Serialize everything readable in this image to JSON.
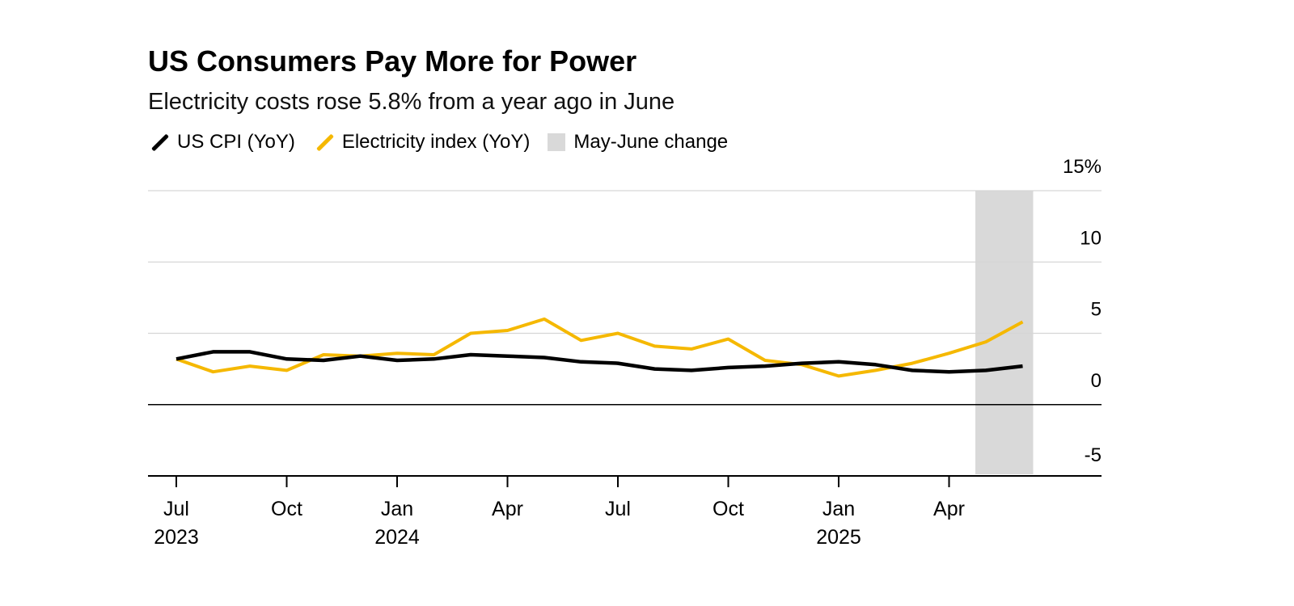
{
  "chart_data": {
    "type": "line",
    "title": "US Consumers Pay More for Power",
    "subtitle": "Electricity costs rose 5.8% from a year ago in June",
    "y_unit_label": "15%",
    "ylim": [
      -5,
      15
    ],
    "y_ticks": [
      15,
      10,
      5,
      0,
      -5
    ],
    "y_tick_labels": [
      "15%",
      "10",
      "5",
      "0",
      "-5"
    ],
    "x_ticks": [
      {
        "month": 0,
        "label": "Jul",
        "year": "2023"
      },
      {
        "month": 3,
        "label": "Oct",
        "year": ""
      },
      {
        "month": 6,
        "label": "Jan",
        "year": "2024"
      },
      {
        "month": 9,
        "label": "Apr",
        "year": ""
      },
      {
        "month": 12,
        "label": "Jul",
        "year": ""
      },
      {
        "month": 15,
        "label": "Oct",
        "year": ""
      },
      {
        "month": 18,
        "label": "Jan",
        "year": "2025"
      },
      {
        "month": 21,
        "label": "Apr",
        "year": ""
      }
    ],
    "x_months": [
      "Jul 2023",
      "Aug 2023",
      "Sep 2023",
      "Oct 2023",
      "Nov 2023",
      "Dec 2023",
      "Jan 2024",
      "Feb 2024",
      "Mar 2024",
      "Apr 2024",
      "May 2024",
      "Jun 2024",
      "Jul 2024",
      "Aug 2024",
      "Sep 2024",
      "Oct 2024",
      "Nov 2024",
      "Dec 2024",
      "Jan 2025",
      "Feb 2025",
      "Mar 2025",
      "Apr 2025",
      "May 2025",
      "Jun 2025"
    ],
    "series": [
      {
        "name": "US CPI (YoY)",
        "color": "#000000",
        "values": [
          3.2,
          3.7,
          3.7,
          3.2,
          3.1,
          3.4,
          3.1,
          3.2,
          3.5,
          3.4,
          3.3,
          3.0,
          2.9,
          2.5,
          2.4,
          2.6,
          2.7,
          2.9,
          3.0,
          2.8,
          2.4,
          2.3,
          2.4,
          2.7
        ]
      },
      {
        "name": "Electricity index (YoY)",
        "color": "#F5B800",
        "values": [
          3.2,
          2.3,
          2.7,
          2.4,
          3.5,
          3.4,
          3.6,
          3.5,
          5.0,
          5.2,
          6.0,
          4.5,
          5.0,
          4.1,
          3.9,
          4.6,
          3.1,
          2.8,
          2.0,
          2.4,
          2.9,
          3.6,
          4.4,
          5.8
        ]
      }
    ],
    "shaded_range": {
      "name": "May-June change",
      "color": "#D9D9D9",
      "from_month": 22,
      "to_month": 23
    },
    "legend": [
      {
        "label": "US CPI (YoY)",
        "color": "#000000",
        "kind": "line"
      },
      {
        "label": "Electricity index (YoY)",
        "color": "#F5B800",
        "kind": "line"
      },
      {
        "label": "May-June change",
        "color": "#D9D9D9",
        "kind": "box"
      }
    ],
    "grid": true
  }
}
